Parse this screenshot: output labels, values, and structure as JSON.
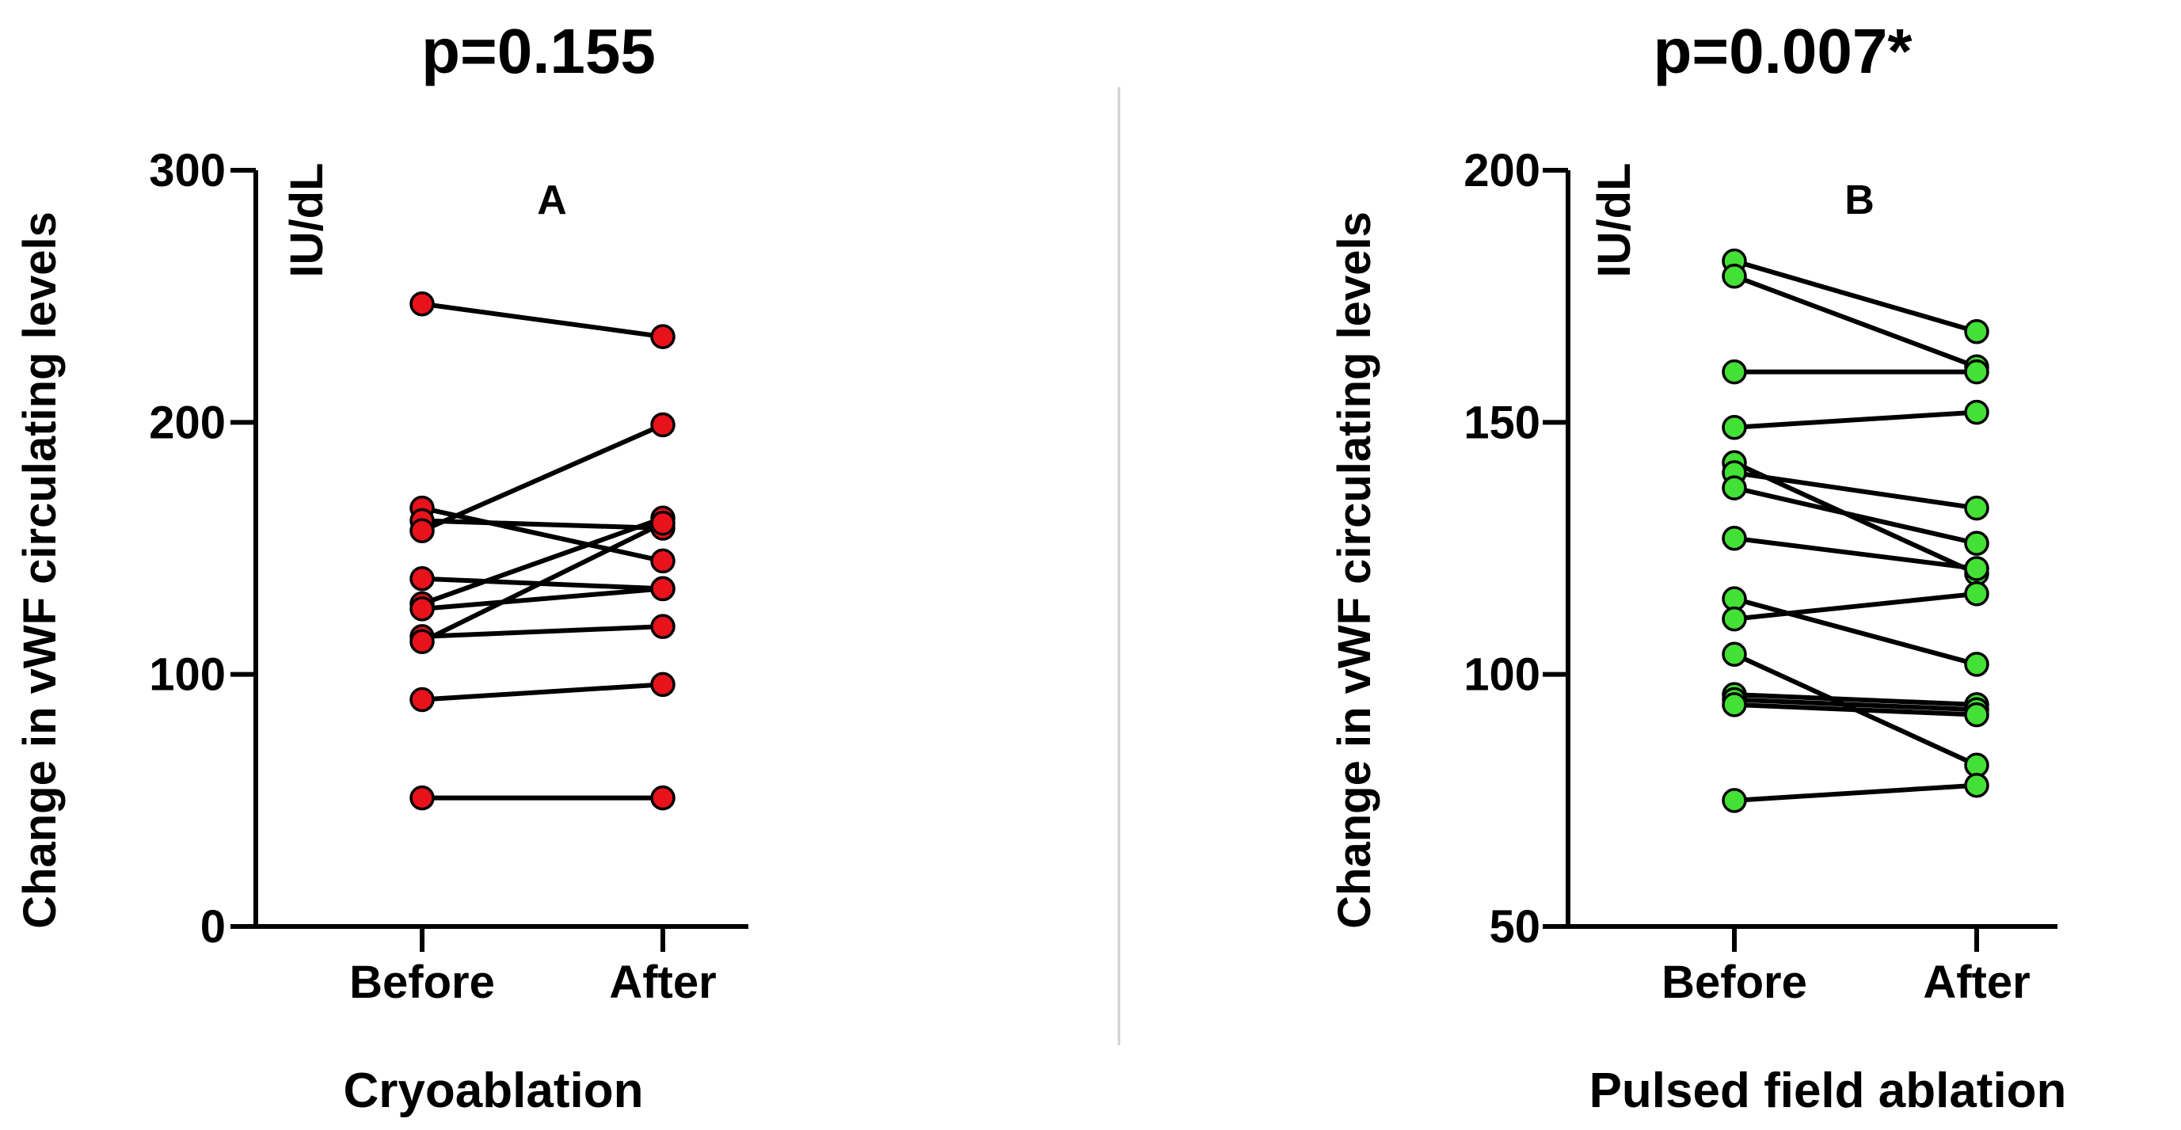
{
  "colors": {
    "panel_a_marker": "#e8121b",
    "panel_b_marker": "#43e035",
    "line": "#000000",
    "divider": "#d0d0d0"
  },
  "chart_data": [
    {
      "type": "line",
      "panel_label": "A",
      "title": "p=0.155",
      "xlabel": "Cryoablation",
      "ylabel": "Change in vWF circulating levels",
      "unit": "IU/dL",
      "categories": [
        "Before",
        "After"
      ],
      "ylim": [
        0,
        300
      ],
      "yticks": [
        0,
        100,
        200,
        300
      ],
      "grid": false,
      "marker": "circle",
      "pairs": [
        [
          247,
          234
        ],
        [
          166,
          145
        ],
        [
          161,
          158
        ],
        [
          157,
          199
        ],
        [
          138,
          134
        ],
        [
          128,
          162
        ],
        [
          126,
          134
        ],
        [
          115,
          119
        ],
        [
          113,
          160
        ],
        [
          90,
          96
        ],
        [
          51,
          51
        ]
      ]
    },
    {
      "type": "line",
      "panel_label": "B",
      "title": "p=0.007*",
      "xlabel": "Pulsed field ablation",
      "ylabel": "Change in vWF circulating levels",
      "unit": "IU/dL",
      "categories": [
        "Before",
        "After"
      ],
      "ylim": [
        50,
        200
      ],
      "yticks": [
        50,
        100,
        150,
        200
      ],
      "grid": false,
      "marker": "circle",
      "pairs": [
        [
          182,
          168
        ],
        [
          179,
          161
        ],
        [
          160,
          160
        ],
        [
          149,
          152
        ],
        [
          142,
          120
        ],
        [
          140,
          133
        ],
        [
          137,
          126
        ],
        [
          127,
          121
        ],
        [
          115,
          102
        ],
        [
          111,
          116
        ],
        [
          104,
          82
        ],
        [
          96,
          94
        ],
        [
          95,
          93
        ],
        [
          94,
          92
        ],
        [
          75,
          78
        ]
      ]
    }
  ]
}
